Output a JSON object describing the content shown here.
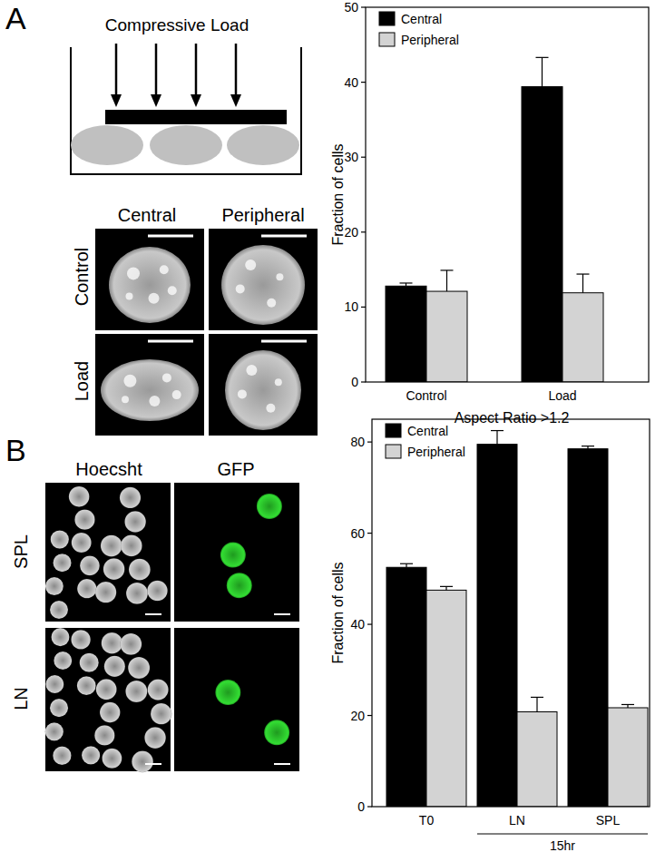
{
  "panel_a": {
    "label": "A",
    "diagram_label": "Compressive Load",
    "columns": [
      "Central",
      "Peripheral"
    ],
    "rows": [
      "Control",
      "Load"
    ]
  },
  "panel_b": {
    "label": "B",
    "columns": [
      "Hoecsht",
      "GFP"
    ],
    "rows": [
      "SPL",
      "LN"
    ]
  },
  "chart_data": [
    {
      "type": "bar",
      "categories": [
        "Control",
        "Load"
      ],
      "x_label": "Aspect Ratio >1.2",
      "y_label": "Fraction of cells",
      "ylim": [
        0,
        50
      ],
      "yticks": [
        0,
        10,
        20,
        30,
        40,
        50
      ],
      "legend": "upper-left",
      "series": [
        {
          "name": "Central",
          "color": "#000000",
          "values": [
            12.8,
            39.4
          ],
          "errors": [
            0.4,
            3.9
          ]
        },
        {
          "name": "Peripheral",
          "color": "#d3d3d3",
          "values": [
            12.1,
            11.9
          ],
          "errors": [
            2.8,
            2.5
          ]
        }
      ]
    },
    {
      "type": "bar",
      "categories": [
        "T0",
        "LN",
        "SPL"
      ],
      "y_label": "Fraction of cells",
      "annotation": "15hr",
      "ylim": [
        0,
        85
      ],
      "yticks": [
        0,
        20,
        40,
        60,
        80
      ],
      "legend": "upper-left",
      "series": [
        {
          "name": "Central",
          "color": "#000000",
          "values": [
            52.5,
            79.5,
            78.5
          ],
          "errors": [
            0.8,
            3.0,
            0.6
          ]
        },
        {
          "name": "Peripheral",
          "color": "#d3d3d3",
          "values": [
            47.5,
            20.8,
            21.7
          ],
          "errors": [
            0.8,
            3.2,
            0.7
          ]
        }
      ]
    }
  ]
}
